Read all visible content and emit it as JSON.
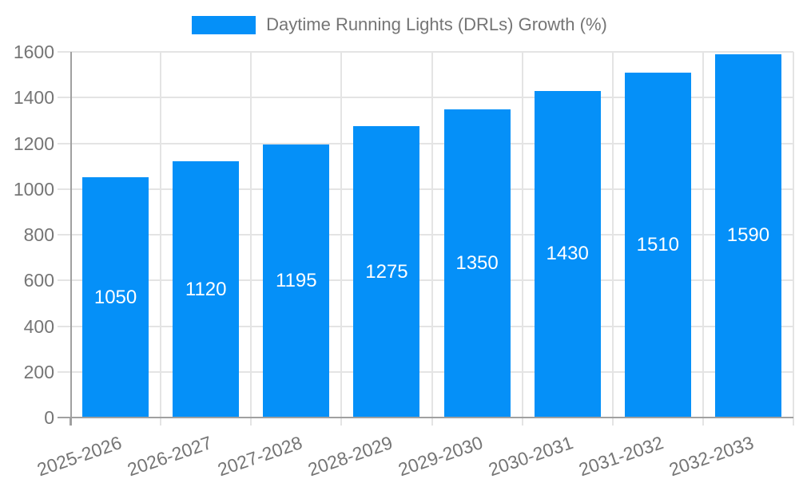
{
  "legend": {
    "label": "Daytime Running Lights (DRLs) Growth (%)"
  },
  "colors": {
    "bar": "#0590f8",
    "bar_label": "#ffffff",
    "axis_text": "#757575",
    "grid": "#e4e4e4",
    "axis_line": "#a0a0a0",
    "background": "#ffffff"
  },
  "chart_data": {
    "type": "bar",
    "title": "Daytime Running Lights (DRLs) Growth (%)",
    "categories": [
      "2025-2026",
      "2026-2027",
      "2027-2028",
      "2028-2029",
      "2029-2030",
      "2030-2031",
      "2031-2032",
      "2032-2033"
    ],
    "values": [
      1050,
      1120,
      1195,
      1275,
      1350,
      1430,
      1510,
      1590
    ],
    "series": [
      {
        "name": "Daytime Running Lights (DRLs) Growth (%)",
        "values": [
          1050,
          1120,
          1195,
          1275,
          1350,
          1430,
          1510,
          1590
        ]
      }
    ],
    "xlabel": "",
    "ylabel": "",
    "ylim": [
      0,
      1600
    ],
    "yticks": [
      0,
      200,
      400,
      600,
      800,
      1000,
      1200,
      1400,
      1600
    ],
    "grid": true,
    "legend_position": "top-center",
    "bar_value_labels": true,
    "x_label_rotation_deg": -19
  }
}
